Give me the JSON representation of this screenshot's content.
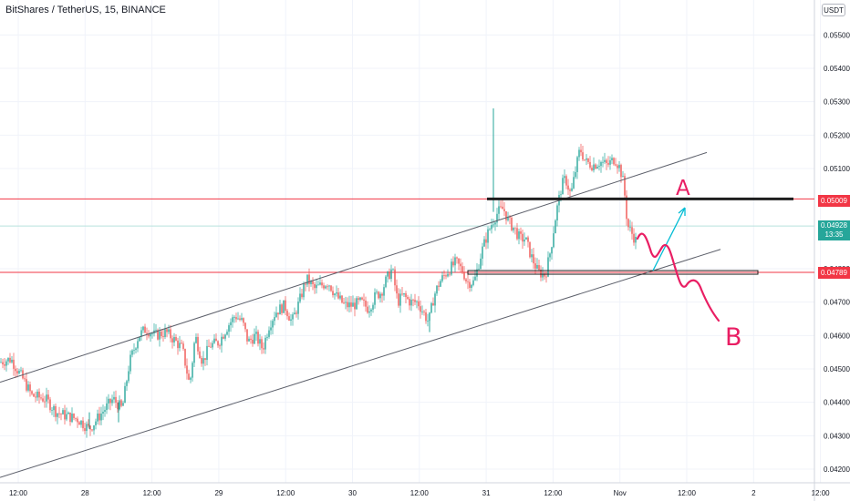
{
  "header": {
    "symbol": "BitShares / TetherUS, 15, BINANCE",
    "currency_button": "USDT"
  },
  "price_tags": {
    "red": "0.05009",
    "current": "0.04928",
    "countdown": "13:35",
    "support": "0.04789"
  },
  "annotations": {
    "A": "A",
    "B": "B"
  },
  "colors": {
    "up": "#26a69a",
    "down": "#ef5350",
    "red_line": "#f23645",
    "current_line": "#b7e2dd",
    "current_tag": "#26a69a",
    "level": "#1e1e1e",
    "channel": "#5d606b",
    "arrow": "#00bcd4",
    "drawing": "#e91e63",
    "grid": "#f0f3fa"
  },
  "chart_data": {
    "type": "candlestick",
    "yaxis_ticks": [
      "0.05500",
      "0.05400",
      "0.05300",
      "0.05200",
      "0.05100",
      "0.04800",
      "0.04700",
      "0.04600",
      "0.04500",
      "0.04400",
      "0.04300",
      "0.04200"
    ],
    "ylim": [
      0.0414,
      0.0562
    ],
    "xaxis_ticks": [
      "12:00",
      "28",
      "12:00",
      "29",
      "12:00",
      "30",
      "12:00",
      "31",
      "12:00",
      "Nov",
      "12:00",
      "2",
      "12:00"
    ],
    "anchors": [
      [
        0,
        0.0452
      ],
      [
        12,
        0.0453
      ],
      [
        25,
        0.0447
      ],
      [
        35,
        0.0442
      ],
      [
        50,
        0.0441
      ],
      [
        62,
        0.0437
      ],
      [
        72,
        0.0436
      ],
      [
        85,
        0.0435
      ],
      [
        98,
        0.0432
      ],
      [
        112,
        0.0437
      ],
      [
        124,
        0.0441
      ],
      [
        134,
        0.0438
      ],
      [
        142,
        0.0452
      ],
      [
        152,
        0.046
      ],
      [
        160,
        0.0462
      ],
      [
        170,
        0.046
      ],
      [
        182,
        0.0461
      ],
      [
        190,
        0.0459
      ],
      [
        200,
        0.0456
      ],
      [
        208,
        0.0445
      ],
      [
        214,
        0.046
      ],
      [
        222,
        0.0452
      ],
      [
        230,
        0.0457
      ],
      [
        240,
        0.0458
      ],
      [
        250,
        0.0463
      ],
      [
        258,
        0.0466
      ],
      [
        266,
        0.0464
      ],
      [
        272,
        0.0458
      ],
      [
        280,
        0.046
      ],
      [
        288,
        0.0456
      ],
      [
        295,
        0.0463
      ],
      [
        302,
        0.0467
      ],
      [
        312,
        0.0469
      ],
      [
        320,
        0.0464
      ],
      [
        328,
        0.047
      ],
      [
        336,
        0.0477
      ],
      [
        345,
        0.0474
      ],
      [
        352,
        0.0475
      ],
      [
        360,
        0.0476
      ],
      [
        368,
        0.0472
      ],
      [
        378,
        0.0469
      ],
      [
        386,
        0.0469
      ],
      [
        396,
        0.047
      ],
      [
        404,
        0.0468
      ],
      [
        412,
        0.0472
      ],
      [
        418,
        0.0473
      ],
      [
        424,
        0.0477
      ],
      [
        430,
        0.048
      ],
      [
        436,
        0.047
      ],
      [
        442,
        0.0472
      ],
      [
        450,
        0.047
      ],
      [
        458,
        0.047
      ],
      [
        466,
        0.0466
      ],
      [
        470,
        0.0464
      ],
      [
        476,
        0.0472
      ],
      [
        482,
        0.0476
      ],
      [
        490,
        0.0479
      ],
      [
        500,
        0.0482
      ],
      [
        508,
        0.0479
      ],
      [
        512,
        0.0476
      ],
      [
        520,
        0.0476
      ],
      [
        528,
        0.0485
      ],
      [
        534,
        0.049
      ],
      [
        540,
        0.0494
      ],
      [
        546,
        0.0497
      ],
      [
        552,
        0.0498
      ],
      [
        558,
        0.0494
      ],
      [
        564,
        0.0492
      ],
      [
        570,
        0.0489
      ],
      [
        576,
        0.0489
      ],
      [
        582,
        0.0484
      ],
      [
        590,
        0.0479
      ],
      [
        598,
        0.0478
      ],
      [
        604,
        0.0486
      ],
      [
        610,
        0.0497
      ],
      [
        616,
        0.0505
      ],
      [
        620,
        0.0507
      ],
      [
        626,
        0.0502
      ],
      [
        630,
        0.0508
      ],
      [
        636,
        0.0516
      ],
      [
        642,
        0.0512
      ],
      [
        650,
        0.0511
      ],
      [
        658,
        0.0512
      ],
      [
        666,
        0.0511
      ],
      [
        674,
        0.0513
      ],
      [
        680,
        0.051
      ],
      [
        684,
        0.0505
      ],
      [
        688,
        0.0493
      ],
      [
        694,
        0.049
      ],
      [
        698,
        0.0488
      ]
    ],
    "spikes": [
      [
        541,
        0.0497,
        0.0528
      ],
      [
        471,
        0.0461,
        0.0467
      ],
      [
        98,
        0.0432,
        0.0437
      ],
      [
        130,
        0.0434,
        0.044
      ]
    ],
    "last_close": 0.04928,
    "horizontal_lines": [
      {
        "price": 0.05009,
        "style": "red"
      },
      {
        "price": 0.04928,
        "style": "current"
      },
      {
        "price": 0.04789,
        "style": "red"
      }
    ],
    "levels": [
      {
        "price": 0.05009,
        "x0": 534,
        "x1": 870
      },
      {
        "price": 0.04789,
        "x0": 513,
        "x1": 831
      }
    ],
    "channel": [
      {
        "p1": [
          0,
          0.0446
        ],
        "p2": [
          775,
          0.05148
        ]
      },
      {
        "p1": [
          0,
          0.04175
        ],
        "p2": [
          790,
          0.04858
        ]
      }
    ]
  }
}
